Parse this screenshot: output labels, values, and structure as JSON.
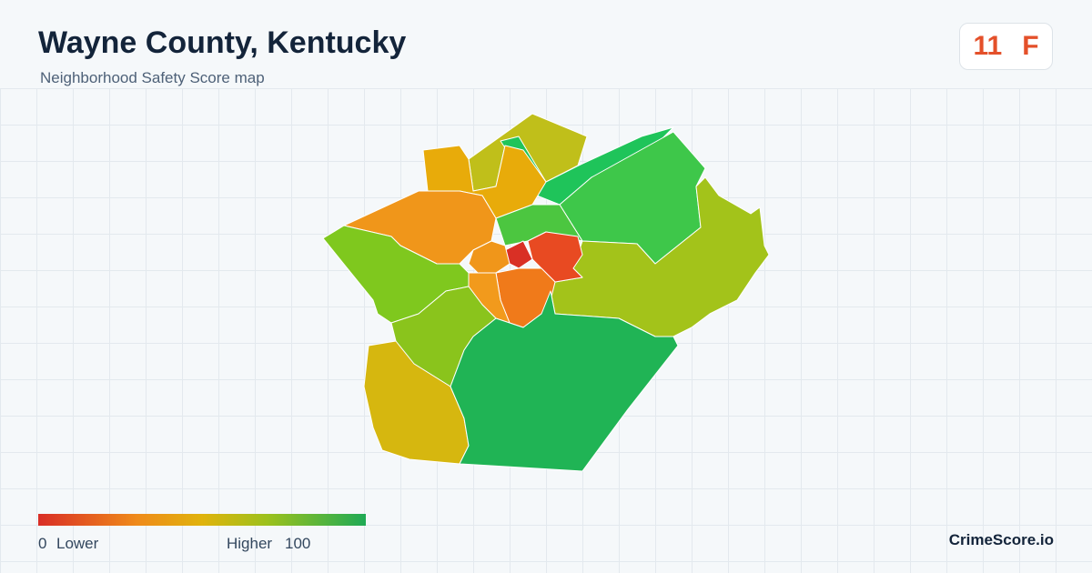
{
  "header": {
    "title": "Wayne County, Kentucky",
    "subtitle": "Neighborhood Safety Score map"
  },
  "score": {
    "value": 11,
    "grade": "F"
  },
  "legend": {
    "min": 0,
    "min_label": "Lower",
    "max_label": "Higher",
    "max": 100
  },
  "brand": "CrimeScore.io"
}
